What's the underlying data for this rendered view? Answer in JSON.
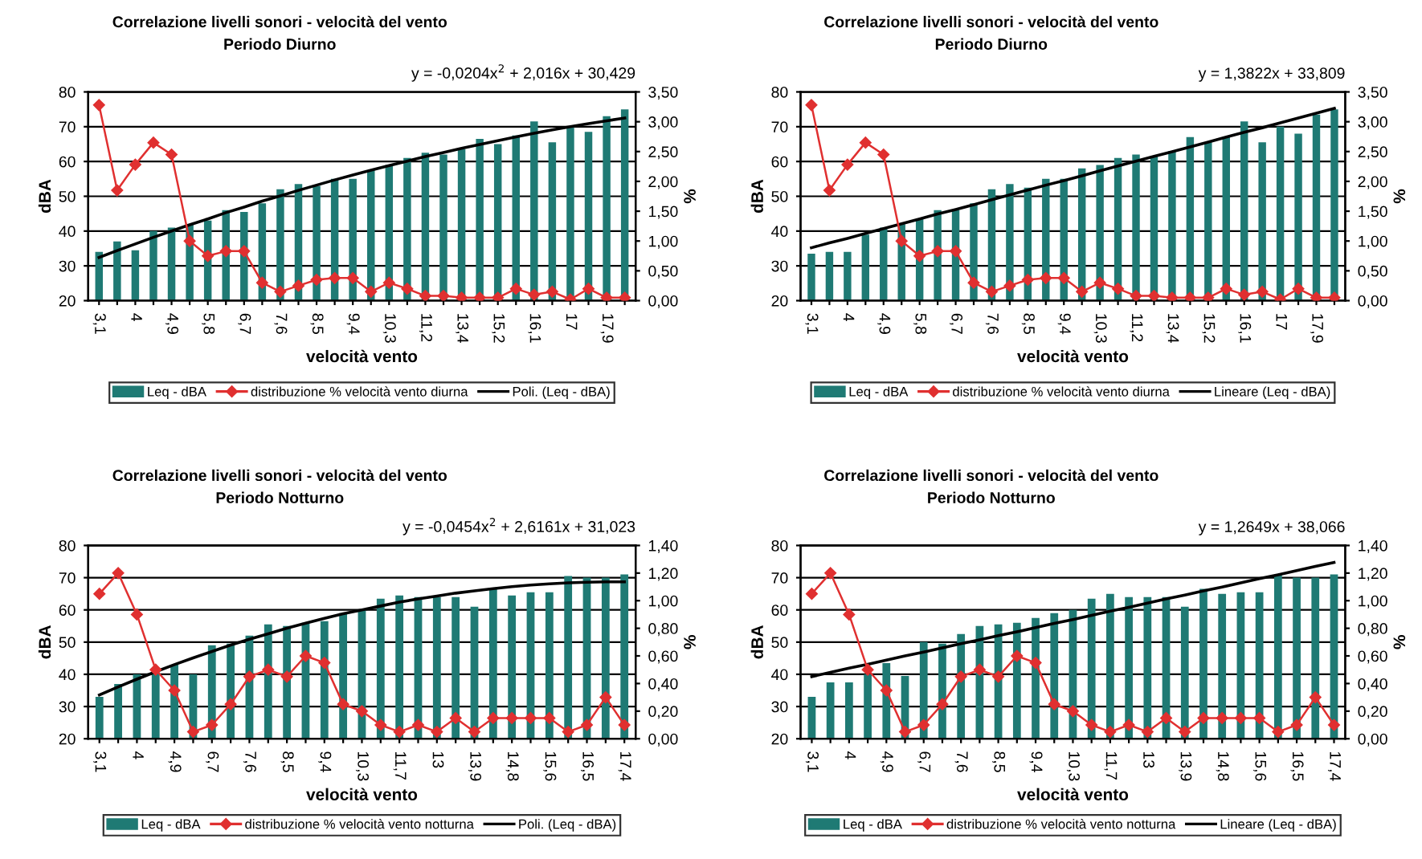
{
  "chart_data": [
    {
      "type": "bar",
      "title": "Correlazione livelli sonori - velocità del vento",
      "subtitle": "Periodo Diurno",
      "xlabel": "velocità vento",
      "ylabel": "dBA",
      "y2label": "%",
      "annotations": [
        "y = -0,0204x$^{2}$ + 2,016x + 30,429"
      ],
      "categories": [
        "3,1",
        null,
        "4",
        null,
        "4,9",
        null,
        "5,8",
        null,
        "6,7",
        null,
        "7,6",
        null,
        "8,5",
        null,
        "9,4",
        null,
        "10,3",
        null,
        "11,2",
        null,
        "13,4",
        null,
        "15,2",
        null,
        "16,1",
        null,
        "17",
        null,
        "17,9",
        null
      ],
      "series": [
        {
          "name": "Leq - dBA",
          "color": "#1f7a74",
          "values": [
            34,
            37,
            34.5,
            40,
            41,
            42,
            43,
            46,
            45.5,
            48,
            52,
            53.5,
            53,
            55,
            55,
            57.5,
            59,
            61,
            62.5,
            62,
            63.5,
            66.5,
            65,
            67.5,
            71.5,
            65.5,
            70,
            68.5,
            73,
            75
          ]
        },
        {
          "name": "distribuzione % velocità vento diurna",
          "type": "line",
          "axis": "y2",
          "color": "#e03030",
          "marker": "diamond",
          "line_style": "solid",
          "values": [
            3.28,
            1.85,
            2.28,
            2.65,
            2.45,
            1.0,
            0.75,
            0.83,
            0.83,
            0.3,
            0.15,
            0.25,
            0.35,
            0.38,
            0.38,
            0.15,
            0.3,
            0.2,
            0.08,
            0.08,
            0.05,
            0.05,
            0.05,
            0.2,
            0.1,
            0.15,
            0.02,
            0.2,
            0.05,
            0.05
          ]
        },
        {
          "name": "Poli. (Leq - dBA)",
          "type": "line",
          "color": "#000000",
          "marker": "none",
          "line_style": "solid",
          "values": [
            32.4,
            34.4,
            36.3,
            38.2,
            40.0,
            41.8,
            43.5,
            45.3,
            46.9,
            48.6,
            50.1,
            51.7,
            53.2,
            54.7,
            56.1,
            57.5,
            58.8,
            60.1,
            61.4,
            62.6,
            63.8,
            64.9,
            66.0,
            67.1,
            68.1,
            69.1,
            70.0,
            70.9,
            71.7,
            72.5
          ]
        }
      ],
      "ylim": [
        20,
        80
      ],
      "yticks": [
        20,
        30,
        40,
        50,
        60,
        70,
        80
      ],
      "y2lim": [
        0,
        3.5
      ],
      "y2ticks": [
        {
          "value": 0,
          "label": "0,00"
        },
        {
          "value": 0.5,
          "label": "0,50"
        },
        {
          "value": 1,
          "label": "1,00"
        },
        {
          "value": 1.5,
          "label": "1,50"
        },
        {
          "value": 2,
          "label": "2,00"
        },
        {
          "value": 2.5,
          "label": "2,50"
        },
        {
          "value": 3,
          "label": "3,00"
        },
        {
          "value": 3.5,
          "label": "3,50"
        }
      ],
      "grid": "y",
      "legend": "bottom"
    },
    {
      "type": "bar",
      "title": "Correlazione livelli sonori - velocità del vento",
      "subtitle": "Periodo Diurno",
      "xlabel": "velocità vento",
      "ylabel": "dBA",
      "y2label": "%",
      "annotations": [
        "y = 1,3822x + 33,809"
      ],
      "categories": [
        "3,1",
        null,
        "4",
        null,
        "4,9",
        null,
        "5,8",
        null,
        "6,7",
        null,
        "7,6",
        null,
        "8,5",
        null,
        "9,4",
        null,
        "10,3",
        null,
        "11,2",
        null,
        "13,4",
        null,
        "15,2",
        null,
        "16,1",
        null,
        "17",
        null,
        "17,9",
        null
      ],
      "series": [
        {
          "name": "Leq - dBA",
          "color": "#1f7a74",
          "values": [
            33.5,
            34,
            34,
            39,
            41,
            42,
            43.5,
            46,
            46,
            48,
            52,
            53.5,
            52.5,
            55,
            55,
            58,
            59,
            61,
            62,
            61.5,
            63,
            67,
            65.5,
            67,
            71.5,
            65.5,
            70,
            68,
            73.5,
            75
          ]
        },
        {
          "name": "distribuzione % velocità vento diurna",
          "type": "line",
          "axis": "y2",
          "color": "#e03030",
          "marker": "diamond",
          "line_style": "solid",
          "values": [
            3.28,
            1.85,
            2.28,
            2.65,
            2.45,
            1.0,
            0.75,
            0.83,
            0.83,
            0.3,
            0.15,
            0.25,
            0.35,
            0.38,
            0.38,
            0.15,
            0.3,
            0.2,
            0.08,
            0.08,
            0.05,
            0.05,
            0.05,
            0.2,
            0.1,
            0.15,
            0.02,
            0.2,
            0.05,
            0.05
          ]
        },
        {
          "name": "Lineare (Leq - dBA)",
          "type": "line",
          "color": "#000000",
          "marker": "none",
          "line_style": "solid",
          "values": [
            35.2,
            36.6,
            37.9,
            39.3,
            40.7,
            42.1,
            43.5,
            44.9,
            46.2,
            47.6,
            49.0,
            50.4,
            51.8,
            53.2,
            54.5,
            55.9,
            57.3,
            58.7,
            60.1,
            61.5,
            62.8,
            64.2,
            65.6,
            67.0,
            68.4,
            69.7,
            71.1,
            72.5,
            73.9,
            75.3
          ]
        }
      ],
      "ylim": [
        20,
        80
      ],
      "yticks": [
        20,
        30,
        40,
        50,
        60,
        70,
        80
      ],
      "y2lim": [
        0,
        3.5
      ],
      "y2ticks": [
        {
          "value": 0,
          "label": "0,00"
        },
        {
          "value": 0.5,
          "label": "0,50"
        },
        {
          "value": 1,
          "label": "1,00"
        },
        {
          "value": 1.5,
          "label": "1,50"
        },
        {
          "value": 2,
          "label": "2,00"
        },
        {
          "value": 2.5,
          "label": "2,50"
        },
        {
          "value": 3,
          "label": "3,00"
        },
        {
          "value": 3.5,
          "label": "3,50"
        }
      ],
      "grid": "y",
      "legend": "bottom"
    },
    {
      "type": "bar",
      "title": "Correlazione livelli sonori - velocità del vento",
      "subtitle": "Periodo Notturno",
      "xlabel": "velocità vento",
      "ylabel": "dBA",
      "y2label": "%",
      "annotations": [
        "y = -0,0454x$^{2}$ + 2,6161x + 31,023"
      ],
      "categories": [
        "3,1",
        null,
        "4",
        null,
        "4,9",
        null,
        "6,7",
        null,
        "7,6",
        null,
        "8,5",
        null,
        "9,4",
        null,
        "10,3",
        null,
        "11,7",
        null,
        "13",
        null,
        "13,9",
        null,
        "14,8",
        null,
        "15,6",
        null,
        "16,5",
        null,
        "17,4"
      ],
      "series": [
        {
          "name": "Leq - dBA",
          "color": "#1f7a74",
          "values": [
            33,
            37,
            40,
            41,
            43,
            40,
            49,
            49.5,
            52,
            55.5,
            55,
            56,
            56.5,
            59,
            60,
            63.5,
            64.5,
            64,
            64,
            64,
            61,
            66.5,
            64.5,
            65.5,
            65.5,
            70.5,
            70,
            70,
            71
          ]
        },
        {
          "name": "distribuzione % velocità vento notturna",
          "type": "line",
          "axis": "y2",
          "color": "#e03030",
          "marker": "diamond",
          "line_style": "solid",
          "values": [
            1.05,
            1.2,
            0.9,
            0.5,
            0.35,
            0.05,
            0.1,
            0.25,
            0.45,
            0.5,
            0.45,
            0.6,
            0.55,
            0.25,
            0.2,
            0.1,
            0.05,
            0.1,
            0.05,
            0.15,
            0.05,
            0.15,
            0.15,
            0.15,
            0.15,
            0.05,
            0.1,
            0.3,
            0.1
          ]
        },
        {
          "name": "Poli. (Leq - dBA)",
          "type": "line",
          "color": "#000000",
          "marker": "none",
          "line_style": "solid",
          "values": [
            33.6,
            36.1,
            38.5,
            40.8,
            43.0,
            45.1,
            47.1,
            49.1,
            50.9,
            52.6,
            54.3,
            55.9,
            57.4,
            58.8,
            60.0,
            61.2,
            62.4,
            63.4,
            64.3,
            65.2,
            65.9,
            66.6,
            67.2,
            67.7,
            68.1,
            68.4,
            68.6,
            68.7,
            68.7
          ]
        }
      ],
      "ylim": [
        20,
        80
      ],
      "yticks": [
        20,
        30,
        40,
        50,
        60,
        70,
        80
      ],
      "y2lim": [
        0,
        1.4
      ],
      "y2ticks": [
        {
          "value": 0,
          "label": "0,00"
        },
        {
          "value": 0.2,
          "label": "0,20"
        },
        {
          "value": 0.4,
          "label": "0,40"
        },
        {
          "value": 0.6,
          "label": "0,60"
        },
        {
          "value": 0.8,
          "label": "0,80"
        },
        {
          "value": 1.0,
          "label": "1,00"
        },
        {
          "value": 1.2,
          "label": "1,20"
        },
        {
          "value": 1.4,
          "label": "1,40"
        }
      ],
      "grid": "y",
      "legend": "bottom"
    },
    {
      "type": "bar",
      "title": "Correlazione livelli sonori - velocità del vento",
      "subtitle": "Periodo Notturno",
      "xlabel": "velocità vento",
      "ylabel": "dBA",
      "y2label": "%",
      "annotations": [
        "y = 1,2649x + 38,066"
      ],
      "categories": [
        "3,1",
        null,
        "4",
        null,
        "4,9",
        null,
        "6,7",
        null,
        "7,6",
        null,
        "8,5",
        null,
        "9,4",
        null,
        "10,3",
        null,
        "11,7",
        null,
        "13",
        null,
        "13,9",
        null,
        "14,8",
        null,
        "15,6",
        null,
        "16,5",
        null,
        "17,4"
      ],
      "series": [
        {
          "name": "Leq - dBA",
          "color": "#1f7a74",
          "values": [
            33,
            37.5,
            37.5,
            40,
            43.5,
            39.5,
            50,
            49.5,
            52.5,
            55,
            55.5,
            56,
            57.5,
            59,
            60,
            63.5,
            65,
            64,
            64,
            64,
            61,
            66.5,
            65,
            65.5,
            65.5,
            71,
            70,
            70,
            71
          ]
        },
        {
          "name": "distribuzione % velocità vento notturna",
          "type": "line",
          "axis": "y2",
          "color": "#e03030",
          "marker": "diamond",
          "line_style": "solid",
          "values": [
            1.05,
            1.2,
            0.9,
            0.5,
            0.35,
            0.05,
            0.1,
            0.25,
            0.45,
            0.5,
            0.45,
            0.6,
            0.55,
            0.25,
            0.2,
            0.1,
            0.05,
            0.1,
            0.05,
            0.15,
            0.05,
            0.15,
            0.15,
            0.15,
            0.15,
            0.05,
            0.1,
            0.3,
            0.1
          ]
        },
        {
          "name": "Lineare (Leq - dBA)",
          "type": "line",
          "color": "#000000",
          "marker": "none",
          "line_style": "solid",
          "values": [
            39.3,
            40.6,
            41.9,
            43.1,
            44.4,
            45.7,
            46.9,
            48.2,
            49.5,
            50.7,
            52.0,
            53.2,
            54.5,
            55.8,
            57.0,
            58.3,
            59.6,
            60.8,
            62.1,
            63.4,
            64.6,
            65.9,
            67.1,
            68.4,
            69.7,
            70.9,
            72.2,
            73.5,
            74.7
          ]
        }
      ],
      "ylim": [
        20,
        80
      ],
      "yticks": [
        20,
        30,
        40,
        50,
        60,
        70,
        80
      ],
      "y2lim": [
        0,
        1.4
      ],
      "y2ticks": [
        {
          "value": 0,
          "label": "0,00"
        },
        {
          "value": 0.2,
          "label": "0,20"
        },
        {
          "value": 0.4,
          "label": "0,40"
        },
        {
          "value": 0.6,
          "label": "0,60"
        },
        {
          "value": 0.8,
          "label": "0,80"
        },
        {
          "value": 1.0,
          "label": "1,00"
        },
        {
          "value": 1.2,
          "label": "1,20"
        },
        {
          "value": 1.4,
          "label": "1,40"
        }
      ],
      "grid": "y",
      "legend": "bottom"
    }
  ]
}
